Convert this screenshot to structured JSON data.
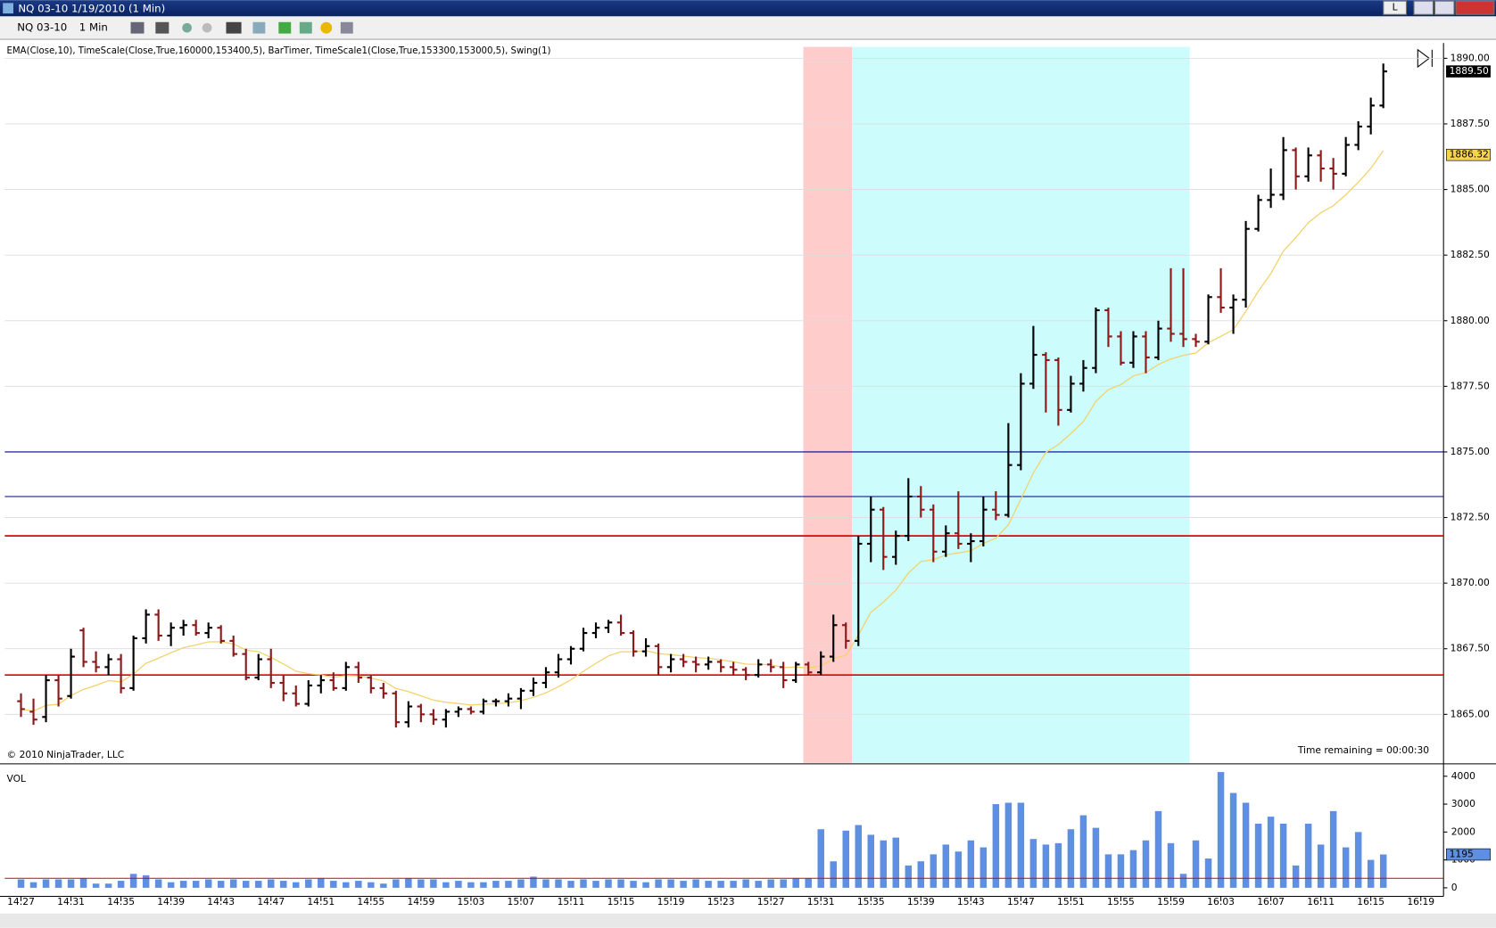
{
  "window": {
    "title": "NQ 03-10  1/19/2010 (1 Min)",
    "button": "L",
    "toolbar": {
      "instrument": "NQ 03-10",
      "interval": "1 Min"
    }
  },
  "chart_data": [
    {
      "type": "ohlc",
      "indicators": "EMA(Close,10), TimeScale(Close,True,160000,153400,5), BarTimer, TimeScale1(Close,True,153300,153000,5), Swing(1)",
      "copyright": "© 2010 NinjaTrader, LLC",
      "time_remaining": "Time remaining = 00:00:30",
      "up_color": "#000000",
      "down_color": "#8b1a1a",
      "ema_period": 10,
      "ema_color": "#f2d36b",
      "ylim": [
        1863.15,
        1890.58
      ],
      "yticks": [
        {
          "value": 1865,
          "label": "1865.00"
        },
        {
          "value": 1867.5,
          "label": "1867.50"
        },
        {
          "value": 1870,
          "label": "1870.00"
        },
        {
          "value": 1872.5,
          "label": "1872.50"
        },
        {
          "value": 1875,
          "label": "1875.00"
        },
        {
          "value": 1877.5,
          "label": "1877.50"
        },
        {
          "value": 1880,
          "label": "1880.00"
        },
        {
          "value": 1882.5,
          "label": "1882.50"
        },
        {
          "value": 1885,
          "label": "1885.00"
        },
        {
          "value": 1887.5,
          "label": "1887.50"
        },
        {
          "value": 1890,
          "label": "1890.00"
        }
      ],
      "grid": true,
      "xticks": [
        {
          "value": 0,
          "label": "14:27"
        },
        {
          "value": 4,
          "label": "14:31"
        },
        {
          "value": 8,
          "label": "14:35"
        },
        {
          "value": 12,
          "label": "14:39"
        },
        {
          "value": 16,
          "label": "14:43"
        },
        {
          "value": 20,
          "label": "14:47"
        },
        {
          "value": 24,
          "label": "14:51"
        },
        {
          "value": 28,
          "label": "14:55"
        },
        {
          "value": 32,
          "label": "14:59"
        },
        {
          "value": 36,
          "label": "15:03"
        },
        {
          "value": 40,
          "label": "15:07"
        },
        {
          "value": 44,
          "label": "15:11"
        },
        {
          "value": 48,
          "label": "15:15"
        },
        {
          "value": 52,
          "label": "15:19"
        },
        {
          "value": 56,
          "label": "15:23"
        },
        {
          "value": 60,
          "label": "15:27"
        },
        {
          "value": 64,
          "label": "15:31"
        },
        {
          "value": 68,
          "label": "15:35"
        },
        {
          "value": 72,
          "label": "15:39"
        },
        {
          "value": 76,
          "label": "15:43"
        },
        {
          "value": 80,
          "label": "15:47"
        },
        {
          "value": 84,
          "label": "15:51"
        },
        {
          "value": 88,
          "label": "15:55"
        },
        {
          "value": 92,
          "label": "15:59"
        },
        {
          "value": 96,
          "label": "16:03"
        },
        {
          "value": 100,
          "label": "16:07"
        },
        {
          "value": 104,
          "label": "16:11"
        },
        {
          "value": 108,
          "label": "16:15"
        },
        {
          "value": 112,
          "label": "16:19"
        }
      ],
      "levels": [
        {
          "value": 1875,
          "color": "#00008b"
        },
        {
          "value": 1873.3,
          "color": "#00008b"
        },
        {
          "value": 1871.8,
          "color": "#e00000"
        },
        {
          "value": 1866.5,
          "color": "#e00000"
        }
      ],
      "last_price": {
        "value": 1889.5,
        "label": "1889.50"
      },
      "ema_last": {
        "value": 1886.32,
        "label": "1886.32"
      },
      "ohlc": [
        [
          1865.5,
          1865.8,
          1864.9,
          1865.2
        ],
        [
          1865.1,
          1865.6,
          1864.6,
          1864.8
        ],
        [
          1864.9,
          1866.5,
          1864.7,
          1866.3
        ],
        [
          1866.3,
          1866.5,
          1865.3,
          1865.6
        ],
        [
          1865.7,
          1867.5,
          1865.6,
          1867.2
        ],
        [
          1868.2,
          1868.3,
          1866.8,
          1867.0
        ],
        [
          1867.0,
          1867.4,
          1866.6,
          1866.8
        ],
        [
          1866.8,
          1867.3,
          1866.5,
          1867.1
        ],
        [
          1867.1,
          1867.3,
          1865.8,
          1866.0
        ],
        [
          1866.0,
          1868.0,
          1865.9,
          1867.9
        ],
        [
          1867.9,
          1869.0,
          1867.7,
          1868.8
        ],
        [
          1868.8,
          1869.0,
          1867.8,
          1868.0
        ],
        [
          1868.0,
          1868.5,
          1867.6,
          1868.3
        ],
        [
          1868.3,
          1868.6,
          1868.0,
          1868.4
        ],
        [
          1868.4,
          1868.6,
          1868.0,
          1868.1
        ],
        [
          1868.1,
          1868.5,
          1867.9,
          1868.3
        ],
        [
          1868.3,
          1868.4,
          1867.7,
          1867.8
        ],
        [
          1867.8,
          1868.0,
          1867.2,
          1867.3
        ],
        [
          1867.3,
          1867.5,
          1866.3,
          1866.4
        ],
        [
          1866.4,
          1867.3,
          1866.3,
          1867.1
        ],
        [
          1867.1,
          1867.5,
          1866.0,
          1866.2
        ],
        [
          1866.2,
          1866.5,
          1865.5,
          1865.8
        ],
        [
          1865.8,
          1866.1,
          1865.3,
          1865.4
        ],
        [
          1865.4,
          1866.3,
          1865.3,
          1866.1
        ],
        [
          1866.1,
          1866.5,
          1865.8,
          1866.3
        ],
        [
          1866.3,
          1866.6,
          1865.9,
          1866.0
        ],
        [
          1866.0,
          1867.0,
          1865.9,
          1866.8
        ],
        [
          1866.8,
          1867.0,
          1866.2,
          1866.4
        ],
        [
          1866.4,
          1866.5,
          1865.8,
          1866.0
        ],
        [
          1866.0,
          1866.2,
          1865.6,
          1865.8
        ],
        [
          1865.8,
          1865.9,
          1864.5,
          1864.7
        ],
        [
          1864.7,
          1865.5,
          1864.5,
          1865.3
        ],
        [
          1865.3,
          1865.4,
          1864.7,
          1865.0
        ],
        [
          1865.0,
          1865.2,
          1864.6,
          1864.8
        ],
        [
          1864.8,
          1865.2,
          1864.5,
          1865.1
        ],
        [
          1865.1,
          1865.3,
          1864.9,
          1865.2
        ],
        [
          1865.2,
          1865.3,
          1865.0,
          1865.1
        ],
        [
          1865.1,
          1865.6,
          1865.0,
          1865.5
        ],
        [
          1865.5,
          1865.6,
          1865.3,
          1865.5
        ],
        [
          1865.5,
          1865.8,
          1865.3,
          1865.6
        ],
        [
          1865.6,
          1866.0,
          1865.2,
          1865.9
        ],
        [
          1865.9,
          1866.4,
          1865.7,
          1866.2
        ],
        [
          1866.2,
          1866.8,
          1866.0,
          1866.6
        ],
        [
          1866.6,
          1867.3,
          1866.4,
          1867.1
        ],
        [
          1867.1,
          1867.6,
          1866.9,
          1867.5
        ],
        [
          1867.5,
          1868.3,
          1867.4,
          1868.1
        ],
        [
          1868.1,
          1868.5,
          1867.9,
          1868.3
        ],
        [
          1868.3,
          1868.6,
          1868.1,
          1868.5
        ],
        [
          1868.5,
          1868.8,
          1868.0,
          1868.1
        ],
        [
          1868.1,
          1868.2,
          1867.2,
          1867.4
        ],
        [
          1867.4,
          1867.9,
          1867.2,
          1867.6
        ],
        [
          1867.6,
          1867.7,
          1866.5,
          1866.8
        ],
        [
          1866.8,
          1867.3,
          1866.6,
          1867.1
        ],
        [
          1867.1,
          1867.3,
          1866.8,
          1867.0
        ],
        [
          1867.0,
          1867.2,
          1866.6,
          1866.9
        ],
        [
          1866.9,
          1867.2,
          1866.7,
          1867.0
        ],
        [
          1867.0,
          1867.1,
          1866.6,
          1866.8
        ],
        [
          1866.8,
          1867.0,
          1866.5,
          1866.7
        ],
        [
          1866.7,
          1866.8,
          1866.3,
          1866.5
        ],
        [
          1866.5,
          1867.1,
          1866.4,
          1866.9
        ],
        [
          1866.9,
          1867.1,
          1866.6,
          1866.8
        ],
        [
          1866.8,
          1867.0,
          1866.0,
          1866.3
        ],
        [
          1866.3,
          1867.0,
          1866.2,
          1866.9
        ],
        [
          1866.9,
          1867.0,
          1866.5,
          1866.6
        ],
        [
          1866.6,
          1867.4,
          1866.5,
          1867.2
        ],
        [
          1867.2,
          1868.8,
          1867.0,
          1868.4
        ],
        [
          1868.4,
          1868.5,
          1867.5,
          1867.8
        ],
        [
          1867.8,
          1871.8,
          1867.6,
          1871.5
        ],
        [
          1871.5,
          1873.3,
          1870.8,
          1872.8
        ],
        [
          1872.8,
          1872.9,
          1870.5,
          1871.0
        ],
        [
          1871.0,
          1872.0,
          1870.7,
          1871.8
        ],
        [
          1871.8,
          1874.0,
          1871.6,
          1873.3
        ],
        [
          1873.3,
          1873.7,
          1872.5,
          1872.8
        ],
        [
          1872.8,
          1873.0,
          1870.8,
          1871.2
        ],
        [
          1871.2,
          1872.2,
          1871.0,
          1871.9
        ],
        [
          1871.9,
          1873.5,
          1871.3,
          1871.5
        ],
        [
          1871.5,
          1871.9,
          1870.8,
          1871.6
        ],
        [
          1871.6,
          1873.3,
          1871.4,
          1872.8
        ],
        [
          1872.8,
          1873.5,
          1872.4,
          1872.6
        ],
        [
          1872.6,
          1876.1,
          1872.5,
          1874.5
        ],
        [
          1874.5,
          1878.0,
          1874.3,
          1877.6
        ],
        [
          1877.6,
          1879.8,
          1877.4,
          1878.7
        ],
        [
          1878.7,
          1878.8,
          1876.5,
          1878.5
        ],
        [
          1878.5,
          1878.6,
          1876.0,
          1876.6
        ],
        [
          1876.6,
          1877.9,
          1876.5,
          1877.6
        ],
        [
          1877.6,
          1878.5,
          1877.3,
          1878.2
        ],
        [
          1878.2,
          1880.5,
          1878.0,
          1880.4
        ],
        [
          1880.4,
          1880.5,
          1879.0,
          1879.4
        ],
        [
          1879.4,
          1879.6,
          1878.3,
          1878.4
        ],
        [
          1878.4,
          1879.6,
          1878.2,
          1879.4
        ],
        [
          1879.4,
          1879.6,
          1878.0,
          1878.6
        ],
        [
          1878.6,
          1880.0,
          1878.5,
          1879.7
        ],
        [
          1879.7,
          1882.0,
          1879.2,
          1879.5
        ],
        [
          1879.5,
          1882.0,
          1879.0,
          1879.3
        ],
        [
          1879.3,
          1879.5,
          1879.0,
          1879.2
        ],
        [
          1879.2,
          1881.0,
          1879.1,
          1880.9
        ],
        [
          1880.9,
          1882.0,
          1880.3,
          1880.5
        ],
        [
          1880.5,
          1881.0,
          1879.5,
          1880.8
        ],
        [
          1880.8,
          1883.8,
          1880.5,
          1883.5
        ],
        [
          1883.5,
          1884.8,
          1883.4,
          1884.6
        ],
        [
          1884.6,
          1885.8,
          1884.3,
          1884.8
        ],
        [
          1884.8,
          1887.0,
          1884.6,
          1886.5
        ],
        [
          1886.5,
          1886.6,
          1885.0,
          1885.5
        ],
        [
          1885.5,
          1886.6,
          1885.3,
          1886.3
        ],
        [
          1886.3,
          1886.5,
          1885.3,
          1885.8
        ],
        [
          1885.8,
          1886.2,
          1885.0,
          1885.6
        ],
        [
          1885.6,
          1887.0,
          1885.5,
          1886.7
        ],
        [
          1886.7,
          1887.6,
          1886.5,
          1887.4
        ],
        [
          1887.4,
          1888.5,
          1887.1,
          1888.2
        ],
        [
          1888.2,
          1889.8,
          1888.1,
          1889.5
        ]
      ]
    },
    {
      "type": "bar",
      "title": "VOL",
      "color": "#5f8fe3",
      "ylim": [
        0,
        4376
      ],
      "yticks": [
        0,
        1000,
        2000,
        3000,
        4000
      ],
      "last_value": {
        "value": 1195,
        "label": "1195"
      },
      "reference_line": {
        "value": 340,
        "color": "#e00000"
      },
      "values": [
        300,
        200,
        300,
        300,
        300,
        350,
        150,
        150,
        250,
        500,
        450,
        300,
        200,
        250,
        250,
        300,
        250,
        300,
        250,
        250,
        300,
        250,
        200,
        300,
        350,
        250,
        200,
        250,
        200,
        150,
        300,
        350,
        300,
        300,
        200,
        250,
        200,
        200,
        250,
        250,
        300,
        400,
        300,
        300,
        250,
        300,
        250,
        300,
        300,
        250,
        200,
        300,
        300,
        250,
        300,
        250,
        250,
        250,
        300,
        250,
        300,
        300,
        350,
        350,
        2100,
        950,
        2050,
        2250,
        1900,
        1700,
        1800,
        800,
        950,
        1200,
        1550,
        1300,
        1700,
        1450,
        3000,
        3050,
        3050,
        1750,
        1550,
        1600,
        2100,
        2600,
        2150,
        1200,
        1200,
        1350,
        1700,
        2750,
        1600,
        500,
        1700,
        1050,
        4150,
        3400,
        3050,
        2300,
        2550,
        2300,
        800,
        2300,
        1550,
        2750,
        1450,
        2000,
        1000,
        1195
      ]
    }
  ]
}
